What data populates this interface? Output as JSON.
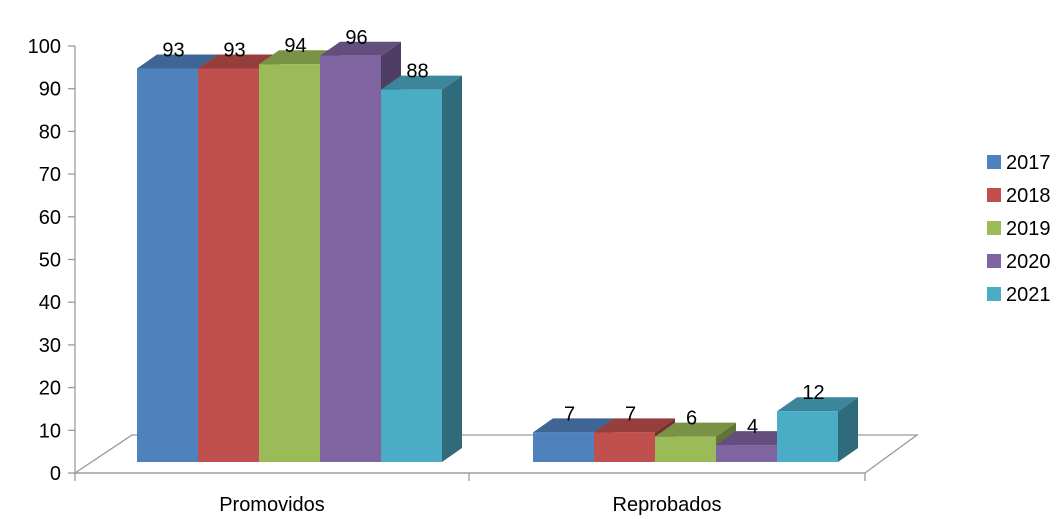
{
  "chart_data": {
    "type": "bar",
    "style": "3d-clustered-column",
    "categories": [
      "Promovidos",
      "Reprobados"
    ],
    "series": [
      {
        "name": "2017",
        "values": [
          93,
          7
        ],
        "color": "#4F81BD"
      },
      {
        "name": "2018",
        "values": [
          93,
          7
        ],
        "color": "#C0504D"
      },
      {
        "name": "2019",
        "values": [
          94,
          6
        ],
        "color": "#9BBB59"
      },
      {
        "name": "2020",
        "values": [
          96,
          4
        ],
        "color": "#8064A2"
      },
      {
        "name": "2021",
        "values": [
          88,
          12
        ],
        "color": "#4BACC6"
      }
    ],
    "y_ticks": [
      "0",
      "10",
      "20",
      "30",
      "40",
      "50",
      "60",
      "70",
      "80",
      "90",
      "100"
    ],
    "ylim": [
      0,
      100
    ],
    "title": "",
    "xlabel": "",
    "ylabel": "",
    "grid": false,
    "legend_position": "right",
    "data_labels": true
  }
}
